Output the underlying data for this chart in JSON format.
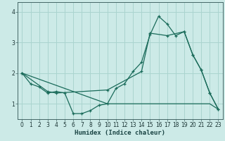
{
  "xlabel": "Humidex (Indice chaleur)",
  "background_color": "#cceae7",
  "line_color": "#1a6b5a",
  "grid_color": "#aad4cf",
  "xlim": [
    -0.5,
    23.5
  ],
  "ylim": [
    0.5,
    4.3
  ],
  "yticks": [
    1,
    2,
    3,
    4
  ],
  "xticks": [
    0,
    1,
    2,
    3,
    4,
    5,
    6,
    7,
    8,
    9,
    10,
    11,
    12,
    13,
    14,
    15,
    16,
    17,
    18,
    19,
    20,
    21,
    22,
    23
  ],
  "curve1_x": [
    0,
    1,
    2,
    3,
    4,
    5,
    6,
    7,
    8,
    9,
    10,
    11,
    12,
    13,
    14,
    15,
    16,
    17,
    18,
    19,
    20,
    21,
    22,
    23
  ],
  "curve1_y": [
    2.0,
    1.65,
    1.55,
    1.35,
    1.4,
    1.35,
    0.68,
    0.68,
    0.78,
    0.95,
    1.0,
    1.5,
    1.65,
    2.05,
    2.35,
    3.25,
    3.85,
    3.6,
    3.22,
    3.35,
    2.6,
    2.1,
    1.35,
    0.82
  ],
  "curve2_x": [
    0,
    3,
    4,
    10,
    14,
    15,
    17,
    19,
    20,
    21,
    22,
    23
  ],
  "curve2_y": [
    2.0,
    1.4,
    1.35,
    1.45,
    2.05,
    3.3,
    3.22,
    3.35,
    2.6,
    2.1,
    1.35,
    0.82
  ],
  "curve3_x": [
    0,
    10,
    11,
    12,
    13,
    14,
    15,
    16,
    17,
    18,
    19,
    20,
    21,
    22,
    23
  ],
  "curve3_y": [
    2.0,
    1.0,
    1.0,
    1.0,
    1.0,
    1.0,
    1.0,
    1.0,
    1.0,
    1.0,
    1.0,
    1.0,
    1.0,
    1.0,
    0.82
  ]
}
